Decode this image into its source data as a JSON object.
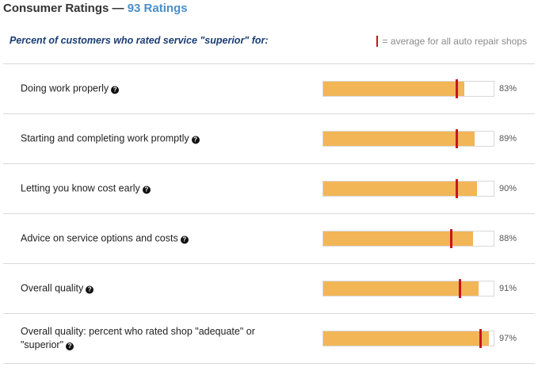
{
  "header": {
    "title": "Consumer Ratings —",
    "count": "93 Ratings"
  },
  "subheading": "Percent of customers who rated service \"superior\" for:",
  "legend": {
    "text": "= average for all auto repair shops",
    "marker_color": "#c8141c"
  },
  "colors": {
    "bar_fill": "#f2b657",
    "average_marker": "#c8141c",
    "count_link": "#4b8fc8",
    "subheading": "#1b3d73"
  },
  "ratings": [
    {
      "label": "Doing work properly",
      "help_icon": "question-circle-icon",
      "value": 83,
      "value_label": "83%",
      "average": 78
    },
    {
      "label": "Starting and completing work promptly",
      "help_icon": "question-circle-icon",
      "value": 89,
      "value_label": "89%",
      "average": 78
    },
    {
      "label": "Letting you know cost early",
      "help_icon": "question-circle-icon",
      "value": 90,
      "value_label": "90%",
      "average": 78
    },
    {
      "label": "Advice on service options and costs",
      "help_icon": "question-circle-icon",
      "value": 88,
      "value_label": "88%",
      "average": 75
    },
    {
      "label": "Overall quality",
      "help_icon": "question-circle-icon",
      "value": 91,
      "value_label": "91%",
      "average": 80
    },
    {
      "label": "Overall quality: percent who rated shop \"adequate\" or \"superior\"",
      "help_icon": "question-circle-icon",
      "value": 97,
      "value_label": "97%",
      "average": 92
    }
  ]
}
